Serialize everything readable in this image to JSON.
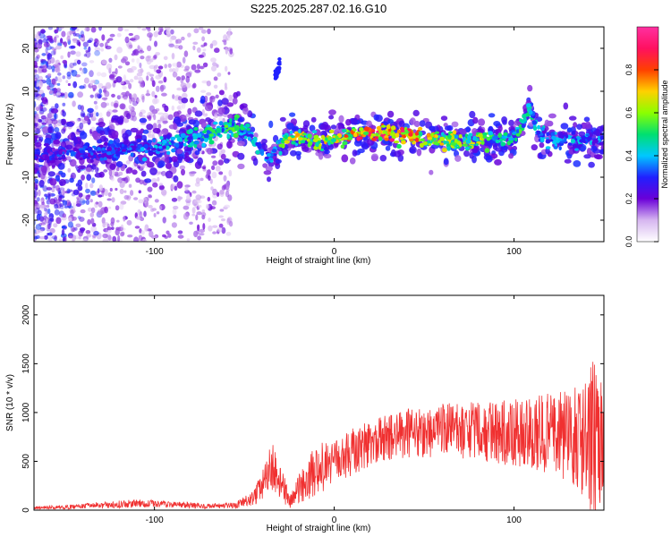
{
  "title": "S225.2025.287.02.16.G10",
  "chart_data": [
    {
      "type": "heatmap",
      "xlabel": "Height of straight line (km)",
      "ylabel": "Frequency (Hz)",
      "xlim": [
        -167,
        150
      ],
      "ylim": [
        -25,
        25
      ],
      "xticks": [
        -100,
        0,
        100
      ],
      "yticks": [
        -20,
        -10,
        0,
        10,
        20
      ],
      "colorbar": {
        "label": "Normalized spectral amplitude",
        "range": [
          0,
          1
        ],
        "ticks": [
          0.0,
          0.2,
          0.4,
          0.6,
          0.8
        ],
        "colormap": [
          "#ffffff",
          "#d6b6f0",
          "#6a00d8",
          "#2020ff",
          "#00c8ff",
          "#00e070",
          "#8cff00",
          "#ffd000",
          "#ff4000",
          "#ff1060",
          "#ff30a0"
        ]
      },
      "ridge": {
        "x": [
          -167,
          -145,
          -125,
          -100,
          -85,
          -75,
          -65,
          -55,
          -48,
          -42,
          -37,
          -33,
          -28,
          -22,
          -15,
          -8,
          0,
          10,
          20,
          30,
          40,
          50,
          60,
          70,
          80,
          90,
          100,
          105,
          108,
          110,
          113,
          118,
          125,
          130,
          135,
          140,
          145,
          150
        ],
        "frequency": [
          -5,
          -4,
          -4,
          -3,
          -2,
          -1,
          1,
          2,
          1,
          -3,
          -6,
          -4,
          -1,
          -1,
          -1,
          -2,
          -1,
          0,
          0,
          0,
          0,
          -1,
          -1,
          -2,
          -1,
          -1,
          -1,
          2,
          6,
          5,
          0,
          -1,
          -2,
          -1,
          -2,
          -1,
          -1,
          -2
        ],
        "amplitude": [
          0.3,
          0.35,
          0.35,
          0.4,
          0.45,
          0.5,
          0.55,
          0.55,
          0.5,
          0.45,
          0.4,
          0.5,
          0.6,
          0.75,
          0.7,
          0.7,
          0.7,
          0.85,
          0.95,
          0.95,
          0.9,
          0.75,
          0.7,
          0.65,
          0.7,
          0.6,
          0.5,
          0.55,
          0.55,
          0.5,
          0.45,
          0.45,
          0.45,
          0.4,
          0.45,
          0.4,
          0.4,
          0.35
        ]
      },
      "secondary_feature": {
        "x": [
          -33,
          -30
        ],
        "frequency": [
          13,
          17
        ],
        "amplitude": 0.3
      }
    },
    {
      "type": "line",
      "color": "#f03030",
      "xlabel": "Height of straight line (km)",
      "ylabel": "SNR (10 * v/v)",
      "xlim": [
        -167,
        150
      ],
      "ylim": [
        0,
        2200
      ],
      "xticks": [
        -100,
        0,
        100
      ],
      "yticks": [
        0,
        500,
        1000,
        1500,
        2000
      ],
      "envelope": {
        "x": [
          -167,
          -150,
          -130,
          -110,
          -90,
          -70,
          -55,
          -45,
          -40,
          -35,
          -32,
          -28,
          -24,
          -20,
          -15,
          -10,
          -5,
          0,
          10,
          20,
          30,
          40,
          50,
          60,
          70,
          80,
          90,
          100,
          110,
          120,
          130,
          140,
          145,
          150
        ],
        "center": [
          25,
          30,
          50,
          70,
          60,
          40,
          45,
          120,
          250,
          450,
          380,
          200,
          90,
          200,
          320,
          420,
          450,
          480,
          600,
          690,
          740,
          780,
          800,
          810,
          820,
          810,
          800,
          790,
          800,
          780,
          760,
          720,
          700,
          720
        ],
        "spread": [
          15,
          20,
          35,
          40,
          35,
          25,
          35,
          80,
          150,
          250,
          250,
          150,
          80,
          150,
          220,
          260,
          250,
          230,
          240,
          240,
          250,
          260,
          270,
          280,
          290,
          300,
          320,
          340,
          380,
          420,
          480,
          600,
          900,
          500
        ]
      }
    }
  ]
}
